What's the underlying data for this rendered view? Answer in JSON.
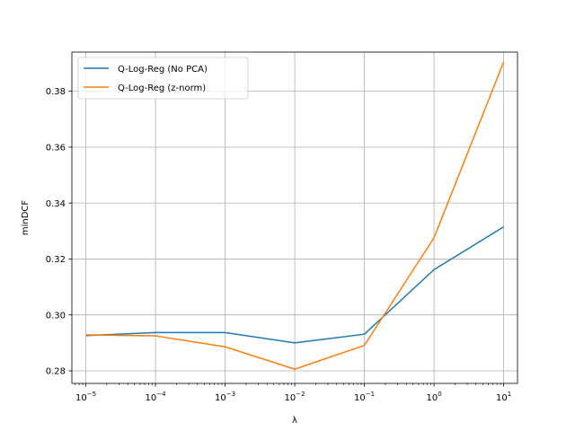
{
  "chart_data": {
    "type": "line",
    "xscale": "log",
    "x": [
      1e-05,
      0.0001,
      0.001,
      0.01,
      0.1,
      1,
      10
    ],
    "x_tick_labels": [
      {
        "base": "10",
        "exp": "−5"
      },
      {
        "base": "10",
        "exp": "−4"
      },
      {
        "base": "10",
        "exp": "−3"
      },
      {
        "base": "10",
        "exp": "−2"
      },
      {
        "base": "10",
        "exp": "−1"
      },
      {
        "base": "10",
        "exp": "0"
      },
      {
        "base": "10",
        "exp": "1"
      }
    ],
    "y_ticks": [
      0.28,
      0.3,
      0.32,
      0.34,
      0.36,
      0.38
    ],
    "y_tick_labels": [
      "0.28",
      "0.30",
      "0.32",
      "0.34",
      "0.36",
      "0.38"
    ],
    "xlim": [
      6.3e-06,
      15.8
    ],
    "ylim": [
      0.2755,
      0.394
    ],
    "xlabel": "λ",
    "ylabel": "minDCF",
    "grid": true,
    "legend_position": "top-left",
    "series": [
      {
        "name": "Q-Log-Reg (No PCA)",
        "color": "#1f77b4",
        "values": [
          0.2926,
          0.2937,
          0.2937,
          0.29,
          0.2931,
          0.3162,
          0.3315
        ]
      },
      {
        "name": "Q-Log-Reg (z-norm)",
        "color": "#ff7f0e",
        "values": [
          0.2929,
          0.2925,
          0.2886,
          0.2806,
          0.2891,
          0.3276,
          0.3905
        ]
      }
    ]
  }
}
